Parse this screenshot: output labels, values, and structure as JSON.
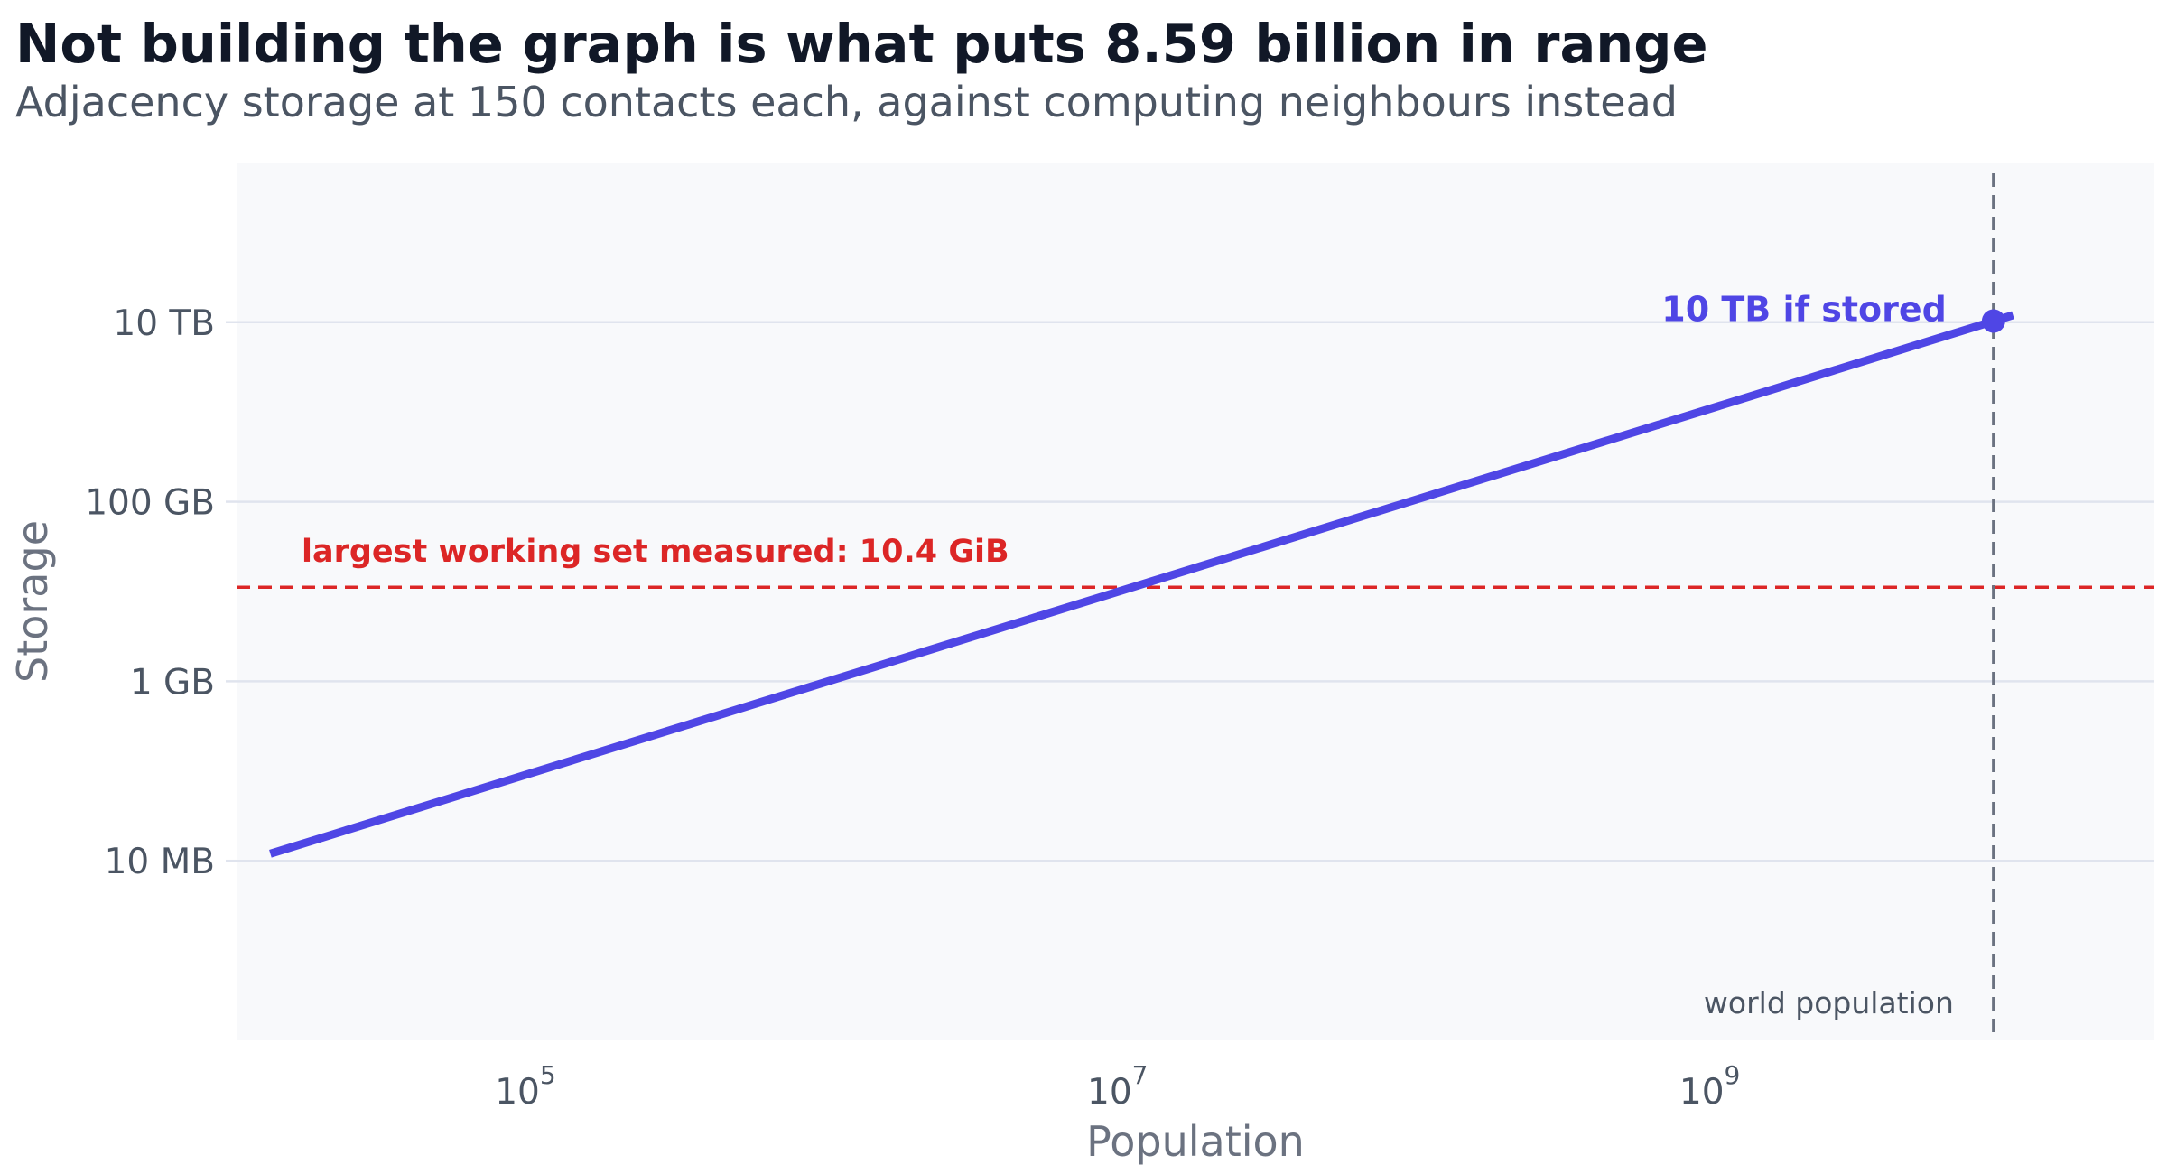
{
  "chart_data": {
    "type": "line",
    "title": "Not building the graph is what puts 8.59 billion in range",
    "subtitle": "Adjacency storage at 150 contacts each, against computing neighbours instead",
    "xlabel": "Population",
    "ylabel": "Storage",
    "x_scale": "log",
    "y_scale": "log",
    "xlim": [
      10000,
      30000000000
    ],
    "ylim_bytes": [
      100000,
      600000000000000
    ],
    "x_ticks": [
      {
        "value": 100000,
        "base": "10",
        "exp": "5"
      },
      {
        "value": 10000000,
        "base": "10",
        "exp": "7"
      },
      {
        "value": 1000000000,
        "base": "10",
        "exp": "9"
      }
    ],
    "y_ticks": [
      {
        "value": 10000000,
        "label": "10 MB"
      },
      {
        "value": 1000000000,
        "label": "1 GB"
      },
      {
        "value": 100000000000,
        "label": "100 GB"
      },
      {
        "value": 10000000000000,
        "label": "10 TB"
      }
    ],
    "grid": {
      "y": true,
      "x": false
    },
    "series": [
      {
        "type": "line",
        "color": "#4f46e5",
        "x": [
          13000,
          10000000000
        ],
        "y": [
          12000000,
          12000000000000
        ]
      }
    ],
    "threshold": {
      "value": 11170000000,
      "color": "#dc2626",
      "label": "largest working set measured: 10.4 GiB"
    },
    "vline": {
      "value": 8590000000,
      "color": "#6b7280",
      "label": "world population"
    },
    "highlight_point": {
      "x": 8590000000,
      "y": 10300000000000,
      "color": "#4f46e5",
      "label": "10 TB if stored"
    },
    "colors": {
      "plot_background": "#f8f9fb",
      "grid": "#e0e4ee",
      "axis_text": "#4b5563",
      "axis_label": "#6b7280",
      "title": "#111827"
    }
  }
}
